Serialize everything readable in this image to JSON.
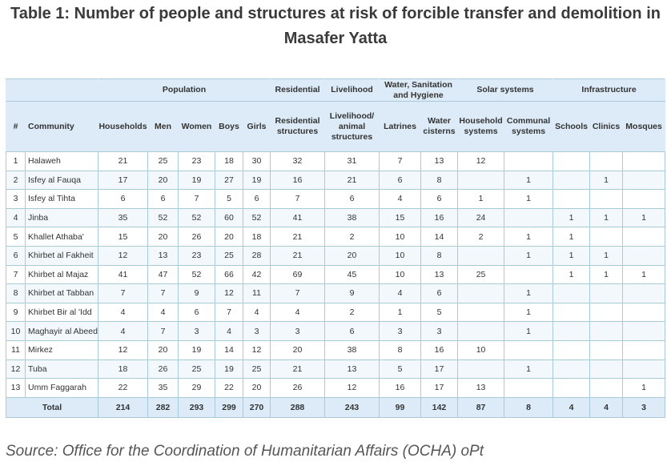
{
  "title": "Table 1: Number of people and structures at risk of forcible transfer and demolition in Masafer Yatta",
  "table": {
    "groups": [
      {
        "label": "",
        "span": 2
      },
      {
        "label": "Population",
        "span": 5
      },
      {
        "label": "Residential",
        "span": 1
      },
      {
        "label": "Livelihood",
        "span": 1
      },
      {
        "label": "Water, Sanitation and Hygiene",
        "span": 2
      },
      {
        "label": "Solar systems",
        "span": 2
      },
      {
        "label": "Infrastructure",
        "span": 3
      }
    ],
    "columns": [
      "#",
      "Community",
      "Households",
      "Men",
      "Women",
      "Boys",
      "Girls",
      "Residential structures",
      "Livelihood/ animal structures",
      "Latrines",
      "Water cisterns",
      "Household systems",
      "Communal systems",
      "Schools",
      "Clinics",
      "Mosques"
    ],
    "rows": [
      [
        "1",
        "Halaweh",
        "21",
        "25",
        "23",
        "18",
        "30",
        "32",
        "31",
        "7",
        "13",
        "12",
        "",
        "",
        "",
        ""
      ],
      [
        "2",
        "Isfey al Fauqa",
        "17",
        "20",
        "19",
        "27",
        "19",
        "16",
        "21",
        "6",
        "8",
        "",
        "1",
        "",
        "1",
        ""
      ],
      [
        "3",
        "Isfey al Tihta",
        "6",
        "6",
        "7",
        "5",
        "6",
        "7",
        "6",
        "4",
        "6",
        "1",
        "1",
        "",
        "",
        ""
      ],
      [
        "4",
        "Jinba",
        "35",
        "52",
        "52",
        "60",
        "52",
        "41",
        "38",
        "15",
        "16",
        "24",
        "",
        "1",
        "1",
        "1"
      ],
      [
        "5",
        "Khallet Athaba'",
        "15",
        "20",
        "26",
        "20",
        "18",
        "21",
        "2",
        "10",
        "14",
        "2",
        "1",
        "1",
        "",
        ""
      ],
      [
        "6",
        "Khirbet al Fakheit",
        "12",
        "13",
        "23",
        "25",
        "28",
        "21",
        "20",
        "10",
        "8",
        "",
        "1",
        "1",
        "1",
        ""
      ],
      [
        "7",
        "Khirbet al Majaz",
        "41",
        "47",
        "52",
        "66",
        "42",
        "69",
        "45",
        "10",
        "13",
        "25",
        "",
        "1",
        "1",
        "1"
      ],
      [
        "8",
        "Khirbet at Tabban",
        "7",
        "7",
        "9",
        "12",
        "11",
        "7",
        "9",
        "4",
        "6",
        "",
        "1",
        "",
        "",
        ""
      ],
      [
        "9",
        "Khirbet Bir al 'Idd",
        "4",
        "4",
        "6",
        "7",
        "4",
        "4",
        "2",
        "1",
        "5",
        "",
        "1",
        "",
        "",
        ""
      ],
      [
        "10",
        "Maghayir al Abeed",
        "4",
        "7",
        "3",
        "4",
        "3",
        "3",
        "6",
        "3",
        "3",
        "",
        "1",
        "",
        "",
        ""
      ],
      [
        "11",
        "Mirkez",
        "12",
        "20",
        "19",
        "14",
        "12",
        "20",
        "38",
        "8",
        "16",
        "10",
        "",
        "",
        "",
        ""
      ],
      [
        "12",
        "Tuba",
        "18",
        "26",
        "25",
        "19",
        "25",
        "21",
        "13",
        "5",
        "17",
        "",
        "1",
        "",
        "",
        ""
      ],
      [
        "13",
        "Umm Faggarah",
        "22",
        "35",
        "29",
        "22",
        "20",
        "26",
        "12",
        "16",
        "17",
        "13",
        "",
        "",
        "",
        "1"
      ]
    ],
    "total": {
      "label": "Total",
      "values": [
        "214",
        "282",
        "293",
        "299",
        "270",
        "288",
        "243",
        "99",
        "142",
        "87",
        "8",
        "4",
        "4",
        "3"
      ]
    }
  },
  "source": "Source: Office for the Coordination of Humanitarian Affairs (OCHA) oPt",
  "colors": {
    "header_bg": "#dcebf7",
    "border": "#a9cbd8",
    "alt_row": "#f2f8fc"
  }
}
